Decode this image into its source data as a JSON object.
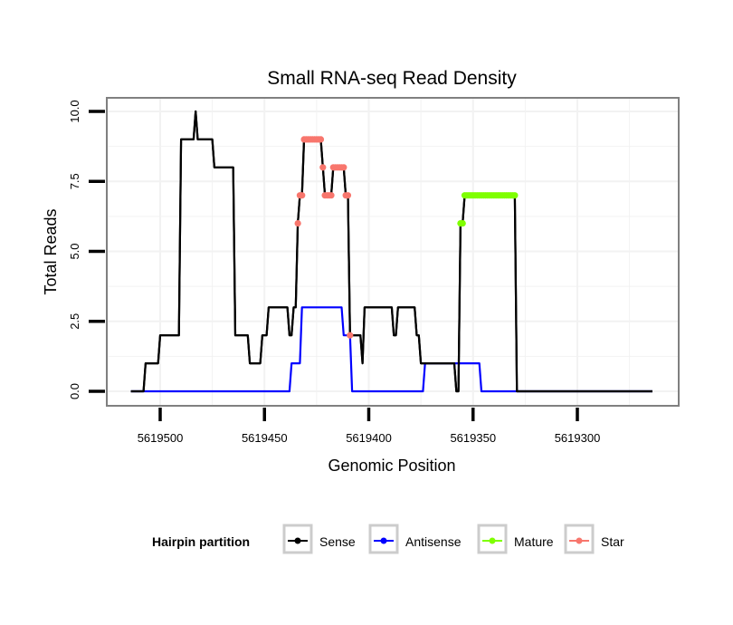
{
  "chart_data": {
    "type": "line",
    "title": "Small RNA-seq Read Density",
    "xlabel": "Genomic Position",
    "ylabel": "Total Reads",
    "x_reversed": true,
    "xlim": [
      5619525,
      5619255
    ],
    "ylim": [
      -0.5,
      10.5
    ],
    "x_ticks": [
      5619500,
      5619450,
      5619400,
      5619350,
      5619300
    ],
    "x_tick_labels": [
      "5619500",
      "5619450",
      "5619400",
      "5619350",
      "5619300"
    ],
    "y_ticks": [
      0,
      2.5,
      5,
      7.5,
      10
    ],
    "y_tick_labels": [
      "0.0",
      "2.5",
      "5.0",
      "7.5",
      "10.0"
    ],
    "grid": true,
    "legend": {
      "title": "Hairpin partition",
      "placement": "bottom",
      "entries": [
        {
          "name": "Sense",
          "color": "#000000"
        },
        {
          "name": "Antisense",
          "color": "#0000ff"
        },
        {
          "name": "Mature",
          "color": "#7fff00"
        },
        {
          "name": "Star",
          "color": "#f8766d"
        }
      ]
    },
    "series": [
      {
        "name": "Sense",
        "color": "#000000",
        "kind": "line",
        "steps": [
          [
            5619514,
            0
          ],
          [
            5619507,
            1
          ],
          [
            5619500,
            2
          ],
          [
            5619490,
            9
          ],
          [
            5619483,
            10
          ],
          [
            5619482,
            9
          ],
          [
            5619474,
            8
          ],
          [
            5619464,
            2
          ],
          [
            5619457,
            1
          ],
          [
            5619451,
            2
          ],
          [
            5619448,
            3
          ],
          [
            5619438,
            2
          ],
          [
            5619436,
            3
          ],
          [
            5619434,
            6
          ],
          [
            5619433,
            7
          ],
          [
            5619431,
            9
          ],
          [
            5619422,
            8
          ],
          [
            5619421,
            7
          ],
          [
            5619417,
            8
          ],
          [
            5619411,
            7
          ],
          [
            5619409,
            2
          ],
          [
            5619403,
            1
          ],
          [
            5619402,
            3
          ],
          [
            5619388,
            2
          ],
          [
            5619386,
            3
          ],
          [
            5619377,
            2
          ],
          [
            5619375,
            1
          ],
          [
            5619358,
            0
          ],
          [
            5619356,
            6
          ],
          [
            5619354,
            7
          ],
          [
            5619329,
            0
          ],
          [
            5619264,
            0
          ]
        ]
      },
      {
        "name": "Antisense",
        "color": "#0000ff",
        "kind": "line",
        "steps": [
          [
            5619514,
            0
          ],
          [
            5619437,
            1
          ],
          [
            5619432,
            3
          ],
          [
            5619412,
            2
          ],
          [
            5619408,
            0
          ],
          [
            5619373,
            1
          ],
          [
            5619346,
            0
          ],
          [
            5619264,
            0
          ]
        ]
      },
      {
        "name": "Star",
        "color": "#f8766d",
        "kind": "points",
        "range": [
          5619434,
          5619409
        ]
      },
      {
        "name": "Mature",
        "color": "#7fff00",
        "kind": "points",
        "range": [
          5619356,
          5619330
        ]
      }
    ]
  }
}
